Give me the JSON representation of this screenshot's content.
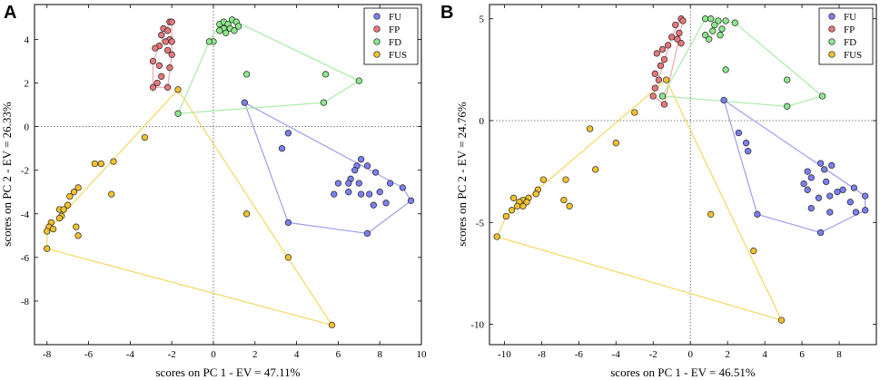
{
  "chart_data": [
    {
      "type": "scatter",
      "panel": "A",
      "xlabel": "scores on PC 1 - EV = 47.11%",
      "ylabel": "scores on PC 2 - EV = 26.33%",
      "xlim": [
        -8.6,
        10.0
      ],
      "ylim": [
        -10.0,
        5.6
      ],
      "xticks": [
        -8,
        -6,
        -4,
        -2,
        0,
        2,
        4,
        6,
        8,
        10
      ],
      "yticks": [
        -8,
        -6,
        -4,
        -2,
        0,
        2,
        4
      ],
      "legend_position": "top-right",
      "series": [
        {
          "name": "FU",
          "color": "#7b7ff0",
          "hull_color": "#9c9ff0",
          "points": [
            [
              1.5,
              1.1
            ],
            [
              3.6,
              -0.3
            ],
            [
              3.3,
              -1.0
            ],
            [
              7.1,
              -1.5
            ],
            [
              6.9,
              -1.8
            ],
            [
              6.8,
              -2.0
            ],
            [
              7.4,
              -1.8
            ],
            [
              7.8,
              -2.1
            ],
            [
              6.6,
              -2.4
            ],
            [
              6.5,
              -2.6
            ],
            [
              7.0,
              -2.6
            ],
            [
              6.0,
              -2.6
            ],
            [
              5.8,
              -3.1
            ],
            [
              6.5,
              -3.0
            ],
            [
              7.1,
              -3.1
            ],
            [
              7.5,
              -3.1
            ],
            [
              8.0,
              -3.0
            ],
            [
              8.5,
              -2.6
            ],
            [
              9.1,
              -2.8
            ],
            [
              8.3,
              -3.5
            ],
            [
              7.7,
              -3.6
            ],
            [
              9.5,
              -3.4
            ],
            [
              3.6,
              -4.4
            ],
            [
              7.4,
              -4.9
            ]
          ],
          "hull": [
            [
              1.5,
              1.1
            ],
            [
              9.1,
              -2.8
            ],
            [
              9.5,
              -3.4
            ],
            [
              7.4,
              -4.9
            ],
            [
              3.6,
              -4.4
            ],
            [
              1.5,
              1.1
            ]
          ]
        },
        {
          "name": "FP",
          "color": "#e8777a",
          "hull_color": "#f2a8aa",
          "points": [
            [
              -2.1,
              4.8
            ],
            [
              -2.0,
              4.8
            ],
            [
              -2.4,
              4.5
            ],
            [
              -2.2,
              4.4
            ],
            [
              -2.5,
              4.2
            ],
            [
              -2.1,
              4.0
            ],
            [
              -2.0,
              3.9
            ],
            [
              -2.3,
              3.9
            ],
            [
              -2.6,
              3.7
            ],
            [
              -2.8,
              3.6
            ],
            [
              -2.2,
              3.5
            ],
            [
              -2.0,
              3.3
            ],
            [
              -2.9,
              3.0
            ],
            [
              -2.6,
              2.8
            ],
            [
              -2.1,
              2.7
            ],
            [
              -2.5,
              2.3
            ],
            [
              -2.7,
              2.0
            ],
            [
              -2.9,
              1.8
            ],
            [
              -2.2,
              1.8
            ]
          ],
          "hull": [
            [
              -2.1,
              4.8
            ],
            [
              -2.0,
              4.8
            ],
            [
              -2.0,
              3.3
            ],
            [
              -2.2,
              1.8
            ],
            [
              -2.9,
              1.8
            ],
            [
              -2.9,
              3.0
            ],
            [
              -2.1,
              4.8
            ]
          ]
        },
        {
          "name": "FD",
          "color": "#8de88d",
          "hull_color": "#a8eca8",
          "points": [
            [
              0.3,
              4.7
            ],
            [
              0.5,
              4.8
            ],
            [
              0.7,
              4.7
            ],
            [
              0.9,
              4.9
            ],
            [
              1.1,
              4.8
            ],
            [
              0.5,
              4.5
            ],
            [
              0.8,
              4.5
            ],
            [
              0.3,
              4.4
            ],
            [
              1.2,
              4.6
            ],
            [
              1.0,
              4.4
            ],
            [
              0.6,
              4.3
            ],
            [
              0.0,
              3.9
            ],
            [
              -0.2,
              3.9
            ],
            [
              1.6,
              2.4
            ],
            [
              5.4,
              2.4
            ],
            [
              7.0,
              2.1
            ],
            [
              5.3,
              1.1
            ],
            [
              -1.7,
              0.6
            ]
          ],
          "hull": [
            [
              0.9,
              4.9
            ],
            [
              7.0,
              2.1
            ],
            [
              5.3,
              1.1
            ],
            [
              -1.7,
              0.6
            ],
            [
              -0.2,
              3.9
            ],
            [
              0.3,
              4.7
            ],
            [
              0.9,
              4.9
            ]
          ]
        },
        {
          "name": "FUS",
          "color": "#f2c22e",
          "hull_color": "#f4d860",
          "points": [
            [
              -1.7,
              1.7
            ],
            [
              -3.3,
              -0.5
            ],
            [
              -4.8,
              -1.6
            ],
            [
              -5.7,
              -1.7
            ],
            [
              -5.4,
              -1.7
            ],
            [
              -4.9,
              -3.1
            ],
            [
              -6.5,
              -2.8
            ],
            [
              -6.7,
              -3.0
            ],
            [
              -6.9,
              -3.2
            ],
            [
              -7.0,
              -3.6
            ],
            [
              -7.4,
              -3.8
            ],
            [
              -7.2,
              -3.8
            ],
            [
              -7.3,
              -4.1
            ],
            [
              -7.4,
              -4.2
            ],
            [
              -7.8,
              -4.4
            ],
            [
              -7.9,
              -4.6
            ],
            [
              -8.0,
              -4.8
            ],
            [
              -7.7,
              -4.7
            ],
            [
              -6.6,
              -4.6
            ],
            [
              -6.5,
              -5.0
            ],
            [
              -8.0,
              -5.6
            ],
            [
              1.6,
              -4.0
            ],
            [
              3.6,
              -6.0
            ],
            [
              5.7,
              -9.1
            ]
          ],
          "hull": [
            [
              -1.7,
              1.7
            ],
            [
              5.7,
              -9.1
            ],
            [
              -8.0,
              -5.6
            ],
            [
              -8.0,
              -4.8
            ],
            [
              -1.7,
              1.7
            ]
          ]
        }
      ]
    },
    {
      "type": "scatter",
      "panel": "B",
      "xlabel": "scores on PC 1 - EV = 46.51%",
      "ylabel": "scores on PC 2 - EV = 24.76%",
      "xlim": [
        -10.8,
        10.0
      ],
      "ylim": [
        -11.0,
        5.7
      ],
      "xticks": [
        -10,
        -8,
        -6,
        -4,
        -2,
        0,
        2,
        4,
        6,
        8
      ],
      "yticks": [
        -10,
        -5,
        0,
        5
      ],
      "legend_position": "top-right",
      "series": [
        {
          "name": "FU",
          "color": "#7b7ff0",
          "hull_color": "#9c9ff0",
          "points": [
            [
              1.8,
              1.0
            ],
            [
              2.6,
              -0.6
            ],
            [
              3.0,
              -1.1
            ],
            [
              3.1,
              -1.5
            ],
            [
              7.6,
              -2.2
            ],
            [
              7.2,
              -2.4
            ],
            [
              7.0,
              -2.1
            ],
            [
              6.3,
              -2.5
            ],
            [
              6.5,
              -2.8
            ],
            [
              6.1,
              -3.1
            ],
            [
              7.3,
              -3.0
            ],
            [
              7.9,
              -3.5
            ],
            [
              6.3,
              -3.4
            ],
            [
              6.9,
              -3.8
            ],
            [
              7.5,
              -3.7
            ],
            [
              8.2,
              -3.4
            ],
            [
              8.8,
              -3.3
            ],
            [
              8.6,
              -4.0
            ],
            [
              9.4,
              -3.7
            ],
            [
              6.5,
              -4.3
            ],
            [
              7.5,
              -4.5
            ],
            [
              8.9,
              -4.5
            ],
            [
              9.4,
              -4.4
            ],
            [
              3.6,
              -4.6
            ],
            [
              7.0,
              -5.5
            ]
          ],
          "hull": [
            [
              1.8,
              1.0
            ],
            [
              9.4,
              -3.7
            ],
            [
              9.4,
              -4.4
            ],
            [
              7.0,
              -5.5
            ],
            [
              3.6,
              -4.6
            ],
            [
              1.8,
              1.0
            ]
          ]
        },
        {
          "name": "FP",
          "color": "#e8777a",
          "hull_color": "#f2a8aa",
          "points": [
            [
              -0.5,
              5.0
            ],
            [
              -0.4,
              4.9
            ],
            [
              -0.8,
              4.7
            ],
            [
              -0.6,
              4.3
            ],
            [
              -1.0,
              4.1
            ],
            [
              -0.7,
              4.0
            ],
            [
              -0.5,
              3.8
            ],
            [
              -1.5,
              3.5
            ],
            [
              -1.2,
              3.7
            ],
            [
              -1.8,
              3.3
            ],
            [
              -1.4,
              3.0
            ],
            [
              -1.6,
              2.7
            ],
            [
              -1.7,
              2.0
            ],
            [
              -1.9,
              2.3
            ],
            [
              -2.0,
              1.2
            ],
            [
              -1.9,
              1.6
            ],
            [
              -1.4,
              0.8
            ]
          ],
          "hull": [
            [
              -0.5,
              5.0
            ],
            [
              -0.4,
              4.9
            ],
            [
              -1.4,
              0.8
            ],
            [
              -2.0,
              1.2
            ],
            [
              -1.0,
              4.1
            ],
            [
              -0.5,
              5.0
            ]
          ]
        },
        {
          "name": "FD",
          "color": "#8de88d",
          "hull_color": "#a8eca8",
          "points": [
            [
              0.8,
              5.0
            ],
            [
              1.1,
              5.0
            ],
            [
              1.5,
              4.9
            ],
            [
              1.9,
              4.9
            ],
            [
              2.4,
              4.8
            ],
            [
              1.3,
              4.7
            ],
            [
              1.7,
              4.5
            ],
            [
              1.2,
              4.4
            ],
            [
              1.6,
              4.2
            ],
            [
              0.8,
              4.2
            ],
            [
              1.0,
              4.0
            ],
            [
              1.9,
              2.5
            ],
            [
              5.2,
              2.0
            ],
            [
              7.1,
              1.2
            ],
            [
              -1.5,
              1.2
            ],
            [
              5.2,
              0.7
            ]
          ],
          "hull": [
            [
              0.8,
              5.0
            ],
            [
              2.4,
              4.8
            ],
            [
              7.1,
              1.2
            ],
            [
              5.2,
              0.7
            ],
            [
              -1.5,
              1.2
            ],
            [
              0.8,
              5.0
            ]
          ]
        },
        {
          "name": "FUS",
          "color": "#f2c22e",
          "hull_color": "#f4d860",
          "points": [
            [
              -1.3,
              2.0
            ],
            [
              -3.0,
              0.4
            ],
            [
              -5.4,
              -0.4
            ],
            [
              -4.0,
              -1.1
            ],
            [
              -5.1,
              -2.4
            ],
            [
              -6.7,
              -2.9
            ],
            [
              -7.9,
              -2.9
            ],
            [
              -8.2,
              -3.4
            ],
            [
              -8.3,
              -3.6
            ],
            [
              -8.7,
              -3.8
            ],
            [
              -9.0,
              -3.9
            ],
            [
              -9.2,
              -4.0
            ],
            [
              -9.5,
              -3.8
            ],
            [
              -8.8,
              -4.0
            ],
            [
              -9.3,
              -4.2
            ],
            [
              -9.0,
              -4.2
            ],
            [
              -9.6,
              -4.4
            ],
            [
              -6.8,
              -3.9
            ],
            [
              -6.5,
              -4.2
            ],
            [
              -9.9,
              -4.7
            ],
            [
              -10.4,
              -5.7
            ],
            [
              1.1,
              -4.6
            ],
            [
              3.4,
              -6.4
            ],
            [
              4.9,
              -9.8
            ]
          ],
          "hull": [
            [
              -1.3,
              2.0
            ],
            [
              4.9,
              -9.8
            ],
            [
              -10.4,
              -5.7
            ],
            [
              -9.9,
              -4.7
            ],
            [
              -1.3,
              2.0
            ]
          ]
        }
      ]
    }
  ]
}
